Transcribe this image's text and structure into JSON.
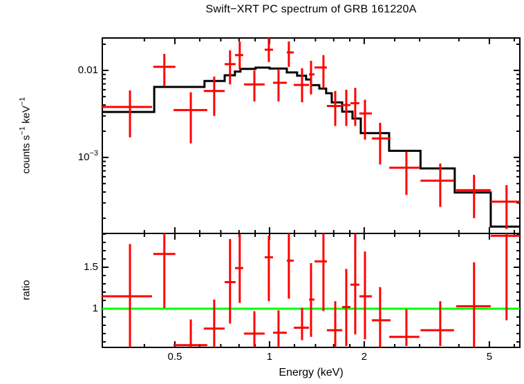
{
  "colors": {
    "data": "#ff0000",
    "model": "#000000",
    "reference": "#00ff00",
    "frame": "#000000",
    "background": "#ffffff"
  },
  "chart_data": [
    {
      "id": "spectrum-panel",
      "type": "scatter",
      "title": "Swift−XRT PC spectrum of GRB 161220A",
      "xlabel": "Energy (keV)",
      "ylabel": "counts s^−1 keV^−1",
      "xscale": "log",
      "yscale": "log",
      "xlim": [
        0.294,
        6.25
      ],
      "ylim": [
        0.0001336,
        0.0236
      ],
      "x_ticks": {
        "major": [
          {
            "v": 0.5,
            "label": "0.5"
          },
          {
            "v": 1,
            "label": "1"
          },
          {
            "v": 2,
            "label": "2"
          },
          {
            "v": 5,
            "label": "5"
          }
        ],
        "minor": [
          0.4,
          0.6,
          0.7,
          0.8,
          0.9,
          1.2,
          1.4,
          1.6,
          1.8,
          2.5,
          3,
          4,
          6
        ]
      },
      "y_ticks": {
        "major": [
          {
            "v": 0.01,
            "label": "0.01"
          },
          {
            "v": 0.001,
            "label": "10^−3"
          }
        ],
        "minor": [
          0.0002,
          0.0003,
          0.0004,
          0.0005,
          0.0006,
          0.0007,
          0.0008,
          0.0009,
          0.002,
          0.003,
          0.004,
          0.005,
          0.006,
          0.007,
          0.008,
          0.009,
          0.02
        ]
      },
      "series": [
        {
          "name": "data",
          "style": "errorbar-cross",
          "color": "#ff0000",
          "points": [
            {
              "x": 0.36,
              "xlo": 0.28,
              "xhi": 0.423,
              "y": 0.0038,
              "ylo": 0.0017,
              "yhi": 0.0059
            },
            {
              "x": 0.463,
              "xlo": 0.427,
              "xhi": 0.502,
              "y": 0.011,
              "ylo": 0.0066,
              "yhi": 0.0155
            },
            {
              "x": 0.562,
              "xlo": 0.495,
              "xhi": 0.634,
              "y": 0.0035,
              "ylo": 0.00145,
              "yhi": 0.0056
            },
            {
              "x": 0.667,
              "xlo": 0.618,
              "xhi": 0.72,
              "y": 0.0058,
              "ylo": 0.003,
              "yhi": 0.0085
            },
            {
              "x": 0.749,
              "xlo": 0.72,
              "xhi": 0.78,
              "y": 0.0118,
              "ylo": 0.0069,
              "yhi": 0.017
            },
            {
              "x": 0.804,
              "xlo": 0.777,
              "xhi": 0.825,
              "y": 0.015,
              "ylo": 0.0104,
              "yhi": 0.0215
            },
            {
              "x": 0.895,
              "xlo": 0.829,
              "xhi": 0.965,
              "y": 0.0069,
              "ylo": 0.0044,
              "yhi": 0.01
            },
            {
              "x": 0.995,
              "xlo": 0.965,
              "xhi": 1.026,
              "y": 0.0173,
              "ylo": 0.0125,
              "yhi": 0.025
            },
            {
              "x": 1.068,
              "xlo": 1.026,
              "xhi": 1.135,
              "y": 0.0072,
              "ylo": 0.0044,
              "yhi": 0.0104
            },
            {
              "x": 1.152,
              "xlo": 1.135,
              "xhi": 1.194,
              "y": 0.0161,
              "ylo": 0.011,
              "yhi": 0.0215
            },
            {
              "x": 1.269,
              "xlo": 1.194,
              "xhi": 1.335,
              "y": 0.0068,
              "ylo": 0.0043,
              "yhi": 0.0106
            },
            {
              "x": 1.355,
              "xlo": 1.335,
              "xhi": 1.39,
              "y": 0.009,
              "ylo": 0.0053,
              "yhi": 0.0129
            },
            {
              "x": 1.484,
              "xlo": 1.39,
              "xhi": 1.522,
              "y": 0.0108,
              "ylo": 0.0062,
              "yhi": 0.015
            },
            {
              "x": 1.618,
              "xlo": 1.522,
              "xhi": 1.702,
              "y": 0.0039,
              "ylo": 0.0023,
              "yhi": 0.0058
            },
            {
              "x": 1.754,
              "xlo": 1.702,
              "xhi": 1.808,
              "y": 0.004,
              "ylo": 0.0023,
              "yhi": 0.006
            },
            {
              "x": 1.873,
              "xlo": 1.808,
              "xhi": 1.93,
              "y": 0.0042,
              "ylo": 0.0023,
              "yhi": 0.0063
            },
            {
              "x": 2.011,
              "xlo": 1.93,
              "xhi": 2.115,
              "y": 0.0032,
              "ylo": 0.0016,
              "yhi": 0.0046
            },
            {
              "x": 2.247,
              "xlo": 2.115,
              "xhi": 2.425,
              "y": 0.00165,
              "ylo": 0.00083,
              "yhi": 0.0025
            },
            {
              "x": 2.724,
              "xlo": 2.402,
              "xhi": 2.995,
              "y": 0.00076,
              "ylo": 0.00037,
              "yhi": 0.00116
            },
            {
              "x": 3.49,
              "xlo": 3.02,
              "xhi": 3.86,
              "y": 0.00054,
              "ylo": 0.00027,
              "yhi": 0.00085
            },
            {
              "x": 4.47,
              "xlo": 3.92,
              "xhi": 5.05,
              "y": 0.00042,
              "ylo": 0.0002,
              "yhi": 0.00063
            },
            {
              "x": 5.67,
              "xlo": 5.05,
              "xhi": 6.4,
              "y": 0.00031,
              "ylo": 0.00015,
              "yhi": 0.00048
            }
          ]
        },
        {
          "name": "model",
          "style": "step-histogram",
          "color": "#000000",
          "step_edges": [
            0.294,
            0.43,
            0.621,
            0.72,
            0.776,
            0.808,
            0.903,
            1.0,
            1.135,
            1.224,
            1.307,
            1.355,
            1.44,
            1.514,
            1.577,
            1.702,
            1.836,
            1.95,
            2.4,
            3.02,
            3.88,
            5.05,
            6.25
          ],
          "step_values": [
            0.00333,
            0.00645,
            0.00755,
            0.0088,
            0.0097,
            0.0104,
            0.01077,
            0.0105,
            0.00947,
            0.0087,
            0.00787,
            0.00678,
            0.00618,
            0.00547,
            0.00429,
            0.00336,
            0.0028,
            0.0019,
            0.00119,
            0.000746,
            0.000394,
            0.00016
          ]
        }
      ]
    },
    {
      "id": "ratio-panel",
      "type": "scatter",
      "title": "",
      "xlabel": "Energy (keV)",
      "ylabel": "ratio",
      "xscale": "log",
      "yscale": "linear",
      "xlim": [
        0.294,
        6.25
      ],
      "ylim": [
        0.533,
        1.908
      ],
      "y_ticks": {
        "major": [
          {
            "v": 1.5,
            "label": "1.5"
          },
          {
            "v": 1,
            "label": "1"
          }
        ],
        "minor": [
          0.6,
          0.7,
          0.8,
          0.9,
          1.1,
          1.2,
          1.3,
          1.4,
          1.6,
          1.7,
          1.8,
          1.9
        ]
      },
      "series": [
        {
          "name": "ratio",
          "style": "errorbar-cross",
          "color": "#ff0000",
          "points": [
            {
              "x": 0.36,
              "xlo": 0.28,
              "xhi": 0.423,
              "y": 1.15,
              "ylo": 0.45,
              "yhi": 1.78
            },
            {
              "x": 0.463,
              "xlo": 0.427,
              "xhi": 0.502,
              "y": 1.66,
              "ylo": 1.01,
              "yhi": 1.95
            },
            {
              "x": 0.562,
              "xlo": 0.495,
              "xhi": 0.634,
              "y": 0.56,
              "ylo": 0.45,
              "yhi": 0.87
            },
            {
              "x": 0.667,
              "xlo": 0.618,
              "xhi": 0.72,
              "y": 0.76,
              "ylo": 0.45,
              "yhi": 1.11
            },
            {
              "x": 0.749,
              "xlo": 0.72,
              "xhi": 0.78,
              "y": 1.32,
              "ylo": 0.82,
              "yhi": 1.84
            },
            {
              "x": 0.804,
              "xlo": 0.777,
              "xhi": 0.825,
              "y": 1.49,
              "ylo": 1.07,
              "yhi": 1.9
            },
            {
              "x": 0.895,
              "xlo": 0.829,
              "xhi": 0.965,
              "y": 0.7,
              "ylo": 0.45,
              "yhi": 0.97
            },
            {
              "x": 0.995,
              "xlo": 0.965,
              "xhi": 1.026,
              "y": 1.62,
              "ylo": 1.09,
              "yhi": 1.88
            },
            {
              "x": 1.068,
              "xlo": 1.026,
              "xhi": 1.135,
              "y": 0.71,
              "ylo": 0.45,
              "yhi": 0.98
            },
            {
              "x": 1.152,
              "xlo": 1.135,
              "xhi": 1.194,
              "y": 1.58,
              "ylo": 1.12,
              "yhi": 1.95
            },
            {
              "x": 1.269,
              "xlo": 1.194,
              "xhi": 1.335,
              "y": 0.77,
              "ylo": 0.62,
              "yhi": 1.01
            },
            {
              "x": 1.355,
              "xlo": 1.335,
              "xhi": 1.39,
              "y": 1.11,
              "ylo": 0.66,
              "yhi": 1.55
            },
            {
              "x": 1.484,
              "xlo": 1.39,
              "xhi": 1.522,
              "y": 1.57,
              "ylo": 0.97,
              "yhi": 1.95
            },
            {
              "x": 1.618,
              "xlo": 1.522,
              "xhi": 1.702,
              "y": 0.74,
              "ylo": 0.45,
              "yhi": 1.09
            },
            {
              "x": 1.754,
              "xlo": 1.702,
              "xhi": 1.808,
              "y": 1.02,
              "ylo": 0.55,
              "yhi": 1.48
            },
            {
              "x": 1.873,
              "xlo": 1.808,
              "xhi": 1.93,
              "y": 1.29,
              "ylo": 0.69,
              "yhi": 1.9
            },
            {
              "x": 2.011,
              "xlo": 1.93,
              "xhi": 2.115,
              "y": 1.15,
              "ylo": 0.63,
              "yhi": 1.69
            },
            {
              "x": 2.247,
              "xlo": 2.115,
              "xhi": 2.425,
              "y": 0.86,
              "ylo": 0.45,
              "yhi": 1.26
            },
            {
              "x": 2.724,
              "xlo": 2.402,
              "xhi": 2.995,
              "y": 0.66,
              "ylo": 0.55,
              "yhi": 0.99
            },
            {
              "x": 3.49,
              "xlo": 3.02,
              "xhi": 3.86,
              "y": 0.74,
              "ylo": 0.55,
              "yhi": 1.09
            },
            {
              "x": 4.47,
              "xlo": 3.92,
              "xhi": 5.05,
              "y": 1.03,
              "ylo": 0.45,
              "yhi": 1.56
            },
            {
              "x": 5.67,
              "xlo": 5.05,
              "xhi": 6.4,
              "y": 1.88,
              "ylo": 0.86,
              "yhi": 1.95
            }
          ]
        },
        {
          "name": "unity-reference",
          "style": "hline",
          "color": "#00ff00",
          "line_y": 1
        }
      ]
    }
  ]
}
